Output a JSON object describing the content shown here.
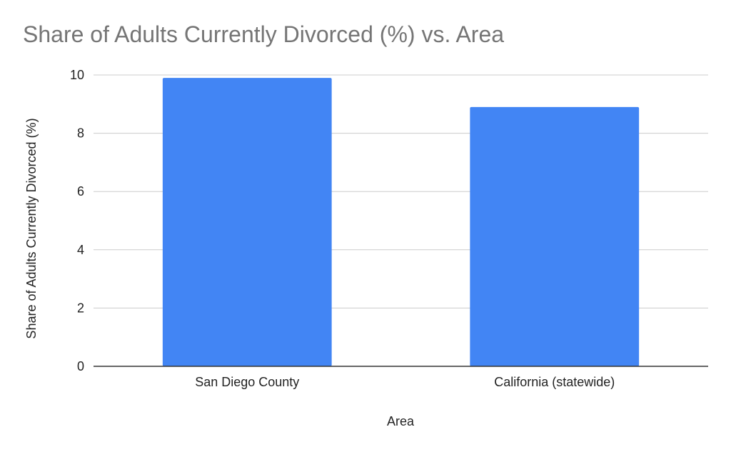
{
  "chart_data": {
    "type": "bar",
    "title": "Share of Adults Currently Divorced (%) vs. Area",
    "xlabel": "Area",
    "ylabel": "Share of Adults Currently Divorced (%)",
    "categories": [
      "San Diego County",
      "California (statewide)"
    ],
    "values": [
      9.9,
      8.9
    ],
    "ylim": [
      0,
      10
    ],
    "yticks": [
      0,
      2,
      4,
      6,
      8,
      10
    ],
    "grid": true,
    "legend": "none",
    "bar_color": "#4285F4",
    "gridline_color": "#CCCCCC",
    "axis_color": "#333333"
  }
}
